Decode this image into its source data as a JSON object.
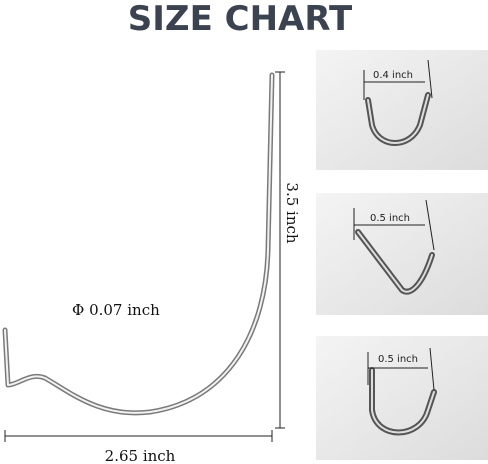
{
  "title": "SIZE CHART",
  "main": {
    "height_label": "3.5 inch",
    "diameter_label": "Φ 0.07 inch",
    "width_label": "2.65 inch"
  },
  "details": [
    {
      "label": "0.4 inch"
    },
    {
      "label": "0.5 inch"
    },
    {
      "label": "0.5 inch"
    }
  ]
}
